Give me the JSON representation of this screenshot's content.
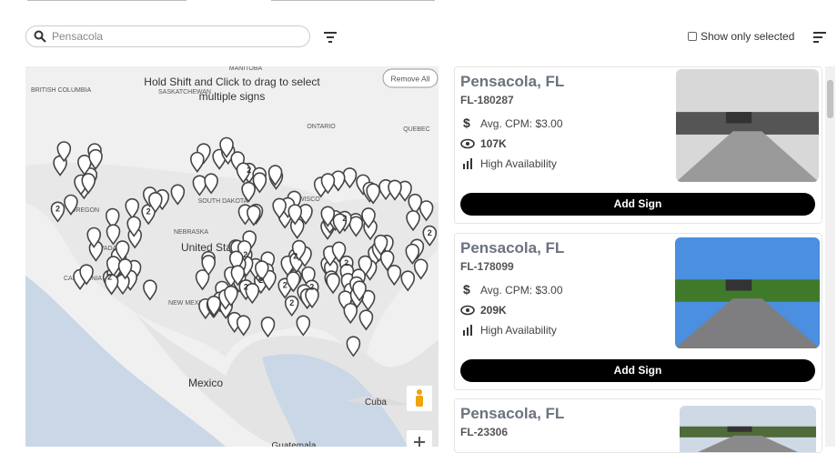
{
  "search": {
    "placeholder": "Pensacola"
  },
  "filter_toggle": {
    "label": "Show only selected"
  },
  "map": {
    "remove_all": "Remove All",
    "hint": "Hold Shift and Click to drag to select multiple signs",
    "labels": [
      "BRITISH COLUMBIA",
      "MANITOBA",
      "SASKATCHEWAN",
      "ONTARIO",
      "QUEBEC",
      "OREGON",
      "SOUTH DAKOTA",
      "WISCO",
      "NEBRASKA",
      "NEVADA",
      "CALIFORNIA",
      "NEW MEXICO",
      "United States",
      "Mexico",
      "Cuba",
      "Guatemala"
    ],
    "clusters": [
      "2",
      "2",
      "2",
      "2",
      "2",
      "2",
      "2",
      "2",
      "2",
      "2",
      "2",
      "2",
      "2",
      "2"
    ]
  },
  "listings": [
    {
      "title": "Pensacola, FL",
      "id": "FL-180287",
      "cpm": "Avg. CPM: $3.00",
      "impressions": "107K",
      "availability": "High Availability",
      "button": "Add Sign"
    },
    {
      "title": "Pensacola, FL",
      "id": "FL-178099",
      "cpm": "Avg. CPM: $3.00",
      "impressions": "209K",
      "availability": "High Availability",
      "button": "Add Sign"
    },
    {
      "title": "Pensacola, FL",
      "id": "FL-23306"
    }
  ]
}
